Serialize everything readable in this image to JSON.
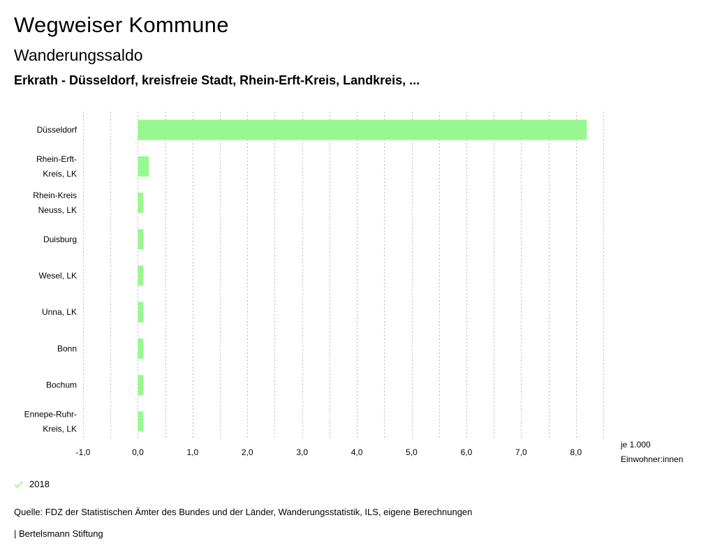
{
  "header": {
    "title": "Wegweiser Kommune",
    "subtitle": "Wanderungssaldo",
    "region": "Erkrath - Düsseldorf, kreisfreie Stadt, Rhein-Erft-Kreis, Landkreis, ..."
  },
  "chart_data": {
    "type": "bar",
    "orientation": "horizontal",
    "categories": [
      [
        "Düsseldorf"
      ],
      [
        "Rhein-Erft-",
        "Kreis, LK"
      ],
      [
        "Rhein-Kreis",
        "Neuss, LK"
      ],
      [
        "Duisburg"
      ],
      [
        "Wesel, LK"
      ],
      [
        "Unna, LK"
      ],
      [
        "Bonn"
      ],
      [
        "Bochum"
      ],
      [
        "Ennepe-Ruhr-",
        "Kreis, LK"
      ]
    ],
    "series": [
      {
        "name": "2018",
        "values": [
          8.2,
          0.2,
          0.1,
          0.1,
          0.1,
          0.1,
          0.1,
          0.1,
          0.1
        ]
      }
    ],
    "xlim": [
      -1.0,
      8.5
    ],
    "xticks": [
      -1.0,
      0.0,
      1.0,
      2.0,
      3.0,
      4.0,
      5.0,
      6.0,
      7.0,
      8.0
    ],
    "xtick_labels": [
      "-1,0",
      "0,0",
      "1,0",
      "2,0",
      "3,0",
      "4,0",
      "5,0",
      "6,0",
      "7,0",
      "8,0"
    ],
    "xlabel": [
      "je 1.000",
      "Einwohner:innen"
    ],
    "color": "#98f890",
    "grid": "dotted-vertical",
    "legend_position": "bottom-left"
  },
  "legend": {
    "label": "2018",
    "color": "#98f890"
  },
  "footer": {
    "source": "Quelle: FDZ der Statistischen Ämter des Bundes und der Länder, Wanderungsstatistik, ILS, eigene Berechnungen",
    "brand": "| Bertelsmann Stiftung"
  }
}
